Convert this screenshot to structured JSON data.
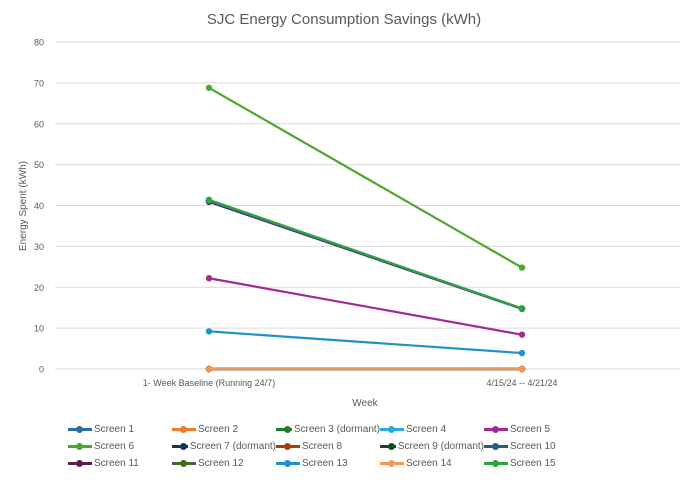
{
  "chart_data": {
    "type": "line",
    "title": "SJC Energy Consumption Savings (kWh)",
    "xlabel": "Week",
    "ylabel": "Energy Spent (kWh)",
    "categories": [
      "1- Week Baseline (Running 24/7)",
      "4/15/24 -- 4/21/24"
    ],
    "ylim": [
      0,
      80
    ],
    "yticks": [
      0,
      10,
      20,
      30,
      40,
      50,
      60,
      70,
      80
    ],
    "grid": true,
    "legend_position": "bottom",
    "series": [
      {
        "name": "Screen 1",
        "color": "#2e6d9e",
        "values": [
          41.2,
          14.8
        ]
      },
      {
        "name": "Screen 2",
        "color": "#ed7d31",
        "values": [
          0,
          0
        ]
      },
      {
        "name": "Screen 3 (dormant)",
        "color": "#1e7b34",
        "values": [
          0,
          0
        ]
      },
      {
        "name": "Screen 4",
        "color": "#2ea8e0",
        "values": [
          0,
          0
        ]
      },
      {
        "name": "Screen 5",
        "color": "#a02b93",
        "values": [
          22.2,
          8.4
        ]
      },
      {
        "name": "Screen 6",
        "color": "#4ea72e",
        "values": [
          68.8,
          24.8
        ]
      },
      {
        "name": "Screen 7 (dormant)",
        "color": "#0e3a5a",
        "values": [
          0,
          0
        ]
      },
      {
        "name": "Screen 8",
        "color": "#a0400e",
        "values": [
          0,
          0
        ]
      },
      {
        "name": "Screen 9 (dormant)",
        "color": "#104c1e",
        "values": [
          0,
          0
        ]
      },
      {
        "name": "Screen 10",
        "color": "#1a6384",
        "values": [
          41.1,
          14.8
        ]
      },
      {
        "name": "Screen 11",
        "color": "#5e1a56",
        "values": [
          40.9,
          14.7
        ]
      },
      {
        "name": "Screen 12",
        "color": "#3b6e22",
        "values": [
          0,
          0
        ]
      },
      {
        "name": "Screen 13",
        "color": "#1f93c8",
        "values": [
          9.2,
          3.9
        ]
      },
      {
        "name": "Screen 14",
        "color": "#f1975a",
        "values": [
          0,
          0
        ]
      },
      {
        "name": "Screen 15",
        "color": "#2fa33f",
        "values": [
          41.4,
          14.8
        ]
      }
    ]
  }
}
